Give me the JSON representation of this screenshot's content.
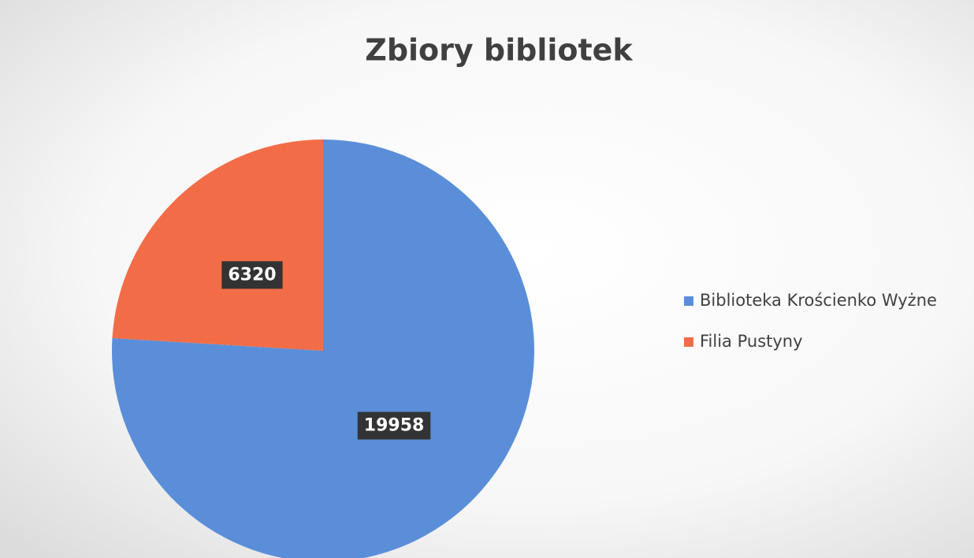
{
  "chart_data": {
    "type": "pie",
    "title": "Zbiory bibliotek",
    "categories": [
      "Biblioteka Krościenko Wyżne",
      "Filia Pustyny"
    ],
    "values": [
      19958,
      6320
    ],
    "colors": [
      "#5b8ed8",
      "#f26d47"
    ],
    "legend": "right"
  }
}
